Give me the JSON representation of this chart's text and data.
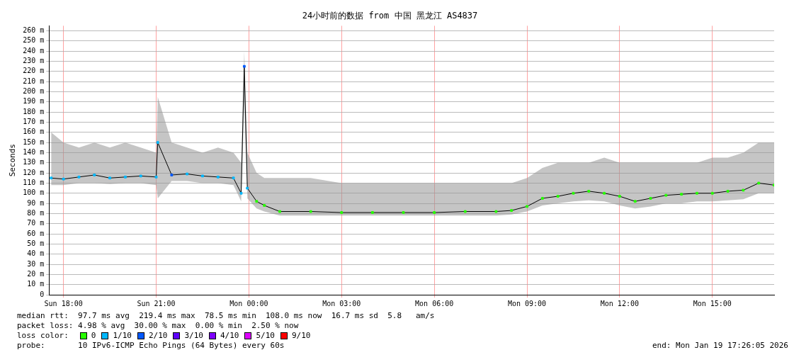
{
  "chart_data": {
    "type": "line",
    "title": "24小时前的数据 from 中国 黑龙江 AS4837",
    "ylabel": "Seconds",
    "x": [
      "2026-01-18T17:36",
      "2026-01-18T18:00",
      "2026-01-18T18:30",
      "2026-01-18T19:00",
      "2026-01-18T19:30",
      "2026-01-18T20:00",
      "2026-01-18T20:30",
      "2026-01-18T21:00",
      "2026-01-18T21:03",
      "2026-01-18T21:30",
      "2026-01-18T22:00",
      "2026-01-18T22:30",
      "2026-01-18T23:00",
      "2026-01-18T23:30",
      "2026-01-18T23:45",
      "2026-01-18T23:51",
      "2026-01-18T23:57",
      "2026-01-19T00:15",
      "2026-01-19T00:30",
      "2026-01-19T01:00",
      "2026-01-19T02:00",
      "2026-01-19T03:00",
      "2026-01-19T04:00",
      "2026-01-19T05:00",
      "2026-01-19T06:00",
      "2026-01-19T07:00",
      "2026-01-19T08:00",
      "2026-01-19T08:30",
      "2026-01-19T09:00",
      "2026-01-19T09:30",
      "2026-01-19T10:00",
      "2026-01-19T10:30",
      "2026-01-19T11:00",
      "2026-01-19T11:30",
      "2026-01-19T12:00",
      "2026-01-19T12:30",
      "2026-01-19T13:00",
      "2026-01-19T13:30",
      "2026-01-19T14:00",
      "2026-01-19T14:30",
      "2026-01-19T15:00",
      "2026-01-19T15:30",
      "2026-01-19T16:00",
      "2026-01-19T16:30",
      "2026-01-19T17:00"
    ],
    "xlim": [
      "2026-01-18T17:32",
      "2026-01-19T17:00"
    ],
    "xticks": [
      {
        "value": "2026-01-18T18:00",
        "label": "Sun 18:00"
      },
      {
        "value": "2026-01-18T21:00",
        "label": "Sun 21:00"
      },
      {
        "value": "2026-01-19T00:00",
        "label": "Mon 00:00"
      },
      {
        "value": "2026-01-19T03:00",
        "label": "Mon 03:00"
      },
      {
        "value": "2026-01-19T06:00",
        "label": "Mon 06:00"
      },
      {
        "value": "2026-01-19T09:00",
        "label": "Mon 09:00"
      },
      {
        "value": "2026-01-19T12:00",
        "label": "Mon 12:00"
      },
      {
        "value": "2026-01-19T15:00",
        "label": "Mon 15:00"
      }
    ],
    "ylim": [
      0,
      265
    ],
    "yticks": [
      0,
      {
        "value": 10,
        "label": "10 m"
      },
      {
        "value": 20,
        "label": "20 m"
      },
      {
        "value": 30,
        "label": "30 m"
      },
      {
        "value": 40,
        "label": "40 m"
      },
      {
        "value": 50,
        "label": "50 m"
      },
      {
        "value": 60,
        "label": "60 m"
      },
      {
        "value": 70,
        "label": "70 m"
      },
      {
        "value": 80,
        "label": "80 m"
      },
      {
        "value": 90,
        "label": "90 m"
      },
      {
        "value": 100,
        "label": "100 m"
      },
      {
        "value": 110,
        "label": "110 m"
      },
      {
        "value": 120,
        "label": "120 m"
      },
      {
        "value": 130,
        "label": "130 m"
      },
      {
        "value": 140,
        "label": "140 m"
      },
      {
        "value": 150,
        "label": "150 m"
      },
      {
        "value": 160,
        "label": "160 m"
      },
      {
        "value": 170,
        "label": "170 m"
      },
      {
        "value": 180,
        "label": "180 m"
      },
      {
        "value": 190,
        "label": "190 m"
      },
      {
        "value": 200,
        "label": "200 m"
      },
      {
        "value": 210,
        "label": "210 m"
      },
      {
        "value": 220,
        "label": "220 m"
      },
      {
        "value": 230,
        "label": "230 m"
      },
      {
        "value": 240,
        "label": "240 m"
      },
      {
        "value": 250,
        "label": "250 m"
      },
      {
        "value": 260,
        "label": "260 m"
      }
    ],
    "grid": true,
    "legend": "bottom",
    "series": [
      {
        "color": "#000000",
        "values": [
          115,
          114,
          116,
          118,
          115,
          116,
          117,
          116,
          150,
          118,
          119,
          117,
          116,
          115,
          100,
          225,
          105,
          92,
          88,
          82,
          82,
          81,
          81,
          81,
          81,
          82,
          82,
          83,
          87,
          95,
          97,
          100,
          102,
          100,
          97,
          92,
          95,
          98,
          99,
          100,
          100,
          102,
          103,
          110,
          108
        ],
        "lower": [
          108,
          108,
          110,
          110,
          109,
          110,
          110,
          108,
          95,
          112,
          112,
          110,
          110,
          108,
          92,
          190,
          95,
          85,
          82,
          78,
          78,
          78,
          78,
          78,
          78,
          78,
          78,
          79,
          82,
          88,
          90,
          92,
          93,
          92,
          88,
          85,
          87,
          90,
          90,
          92,
          92,
          93,
          94,
          100,
          100
        ],
        "upper": [
          160,
          150,
          145,
          150,
          145,
          150,
          145,
          140,
          195,
          150,
          145,
          140,
          145,
          140,
          130,
          240,
          140,
          120,
          115,
          115,
          115,
          110,
          110,
          110,
          110,
          110,
          110,
          110,
          115,
          125,
          130,
          130,
          130,
          135,
          130,
          130,
          130,
          130,
          130,
          130,
          135,
          135,
          140,
          150,
          150
        ]
      },
      {
        "type": "scatter",
        "name": "0",
        "color": "#26ff00",
        "values": [
          null,
          null,
          null,
          null,
          null,
          null,
          null,
          null,
          null,
          null,
          null,
          null,
          null,
          null,
          null,
          null,
          null,
          92,
          88,
          82,
          82,
          81,
          81,
          81,
          81,
          82,
          82,
          83,
          87,
          95,
          97,
          100,
          102,
          100,
          97,
          92,
          95,
          98,
          99,
          100,
          100,
          102,
          103,
          110,
          108
        ]
      },
      {
        "type": "scatter",
        "name": "1/10",
        "color": "#00b8ff",
        "values": [
          115,
          114,
          116,
          118,
          115,
          116,
          117,
          116,
          150,
          null,
          119,
          117,
          116,
          115,
          100,
          null,
          105,
          null,
          null,
          null,
          null,
          null,
          null,
          null,
          null,
          null,
          null,
          null,
          null,
          null,
          null,
          null,
          null,
          null,
          null,
          null,
          null,
          null,
          null,
          null,
          null,
          null,
          null,
          null,
          null
        ]
      },
      {
        "type": "scatter",
        "name": "2/10",
        "color": "#0059ff",
        "values": [
          null,
          null,
          null,
          null,
          null,
          null,
          null,
          null,
          null,
          118,
          null,
          null,
          null,
          null,
          null,
          225,
          null,
          null,
          null,
          null,
          null,
          null,
          null,
          null,
          null,
          null,
          null,
          null,
          null,
          null,
          null,
          null,
          null,
          null,
          null,
          null,
          null,
          null,
          null,
          null,
          null,
          null,
          null,
          null,
          null
        ]
      },
      {
        "type": "scatter",
        "name": "3/10",
        "color": "#5e00ff",
        "values": [
          null,
          null,
          null,
          null,
          null,
          null,
          null,
          null,
          null,
          null,
          null,
          null,
          null,
          null,
          null,
          null,
          null,
          null,
          null,
          null,
          null,
          null,
          null,
          null,
          null,
          null,
          null,
          null,
          null,
          null,
          null,
          null,
          null,
          null,
          null,
          null,
          null,
          null,
          null,
          null,
          null,
          null,
          null,
          null,
          null
        ]
      },
      {
        "type": "scatter",
        "name": "4/10",
        "color": "#7e00ff",
        "values": [
          null,
          null,
          null,
          null,
          null,
          null,
          null,
          null,
          null,
          null,
          null,
          null,
          null,
          null,
          null,
          null,
          null,
          null,
          null,
          null,
          null,
          null,
          null,
          null,
          null,
          null,
          null,
          null,
          null,
          null,
          null,
          null,
          null,
          null,
          null,
          null,
          null,
          null,
          null,
          null,
          null,
          null,
          null,
          null,
          null
        ]
      },
      {
        "type": "scatter",
        "name": "5/10",
        "color": "#dd00ff",
        "values": [
          null,
          null,
          null,
          null,
          null,
          null,
          null,
          null,
          null,
          null,
          null,
          null,
          null,
          null,
          null,
          null,
          null,
          null,
          null,
          null,
          null,
          null,
          null,
          null,
          null,
          null,
          null,
          null,
          null,
          null,
          null,
          null,
          null,
          null,
          null,
          null,
          null,
          null,
          null,
          null,
          null,
          null,
          null,
          null,
          null
        ]
      },
      {
        "type": "scatter",
        "name": "9/10",
        "color": "#ff0000",
        "values": [
          null,
          null,
          null,
          null,
          null,
          null,
          null,
          null,
          null,
          null,
          null,
          null,
          null,
          null,
          null,
          null,
          null,
          null,
          null,
          null,
          null,
          null,
          null,
          null,
          null,
          null,
          null,
          null,
          null,
          null,
          null,
          null,
          null,
          null,
          null,
          null,
          null,
          null,
          null,
          null,
          null,
          null,
          null,
          null,
          null
        ]
      }
    ],
    "annotations": [
      "median rtt:  97.7 ms avg  219.4 ms max  78.5 ms min  108.0 ms now  16.7 ms sd  5.8   am/s",
      "packet loss: 4.98 % avg  30.00 % max  0.00 % min  2.50 % now",
      "loss color:",
      "probe:       10 IPv6-ICMP Echo Pings (64 Bytes) every 60s",
      "end: Mon Jan 19 17:26:05 2026"
    ]
  }
}
